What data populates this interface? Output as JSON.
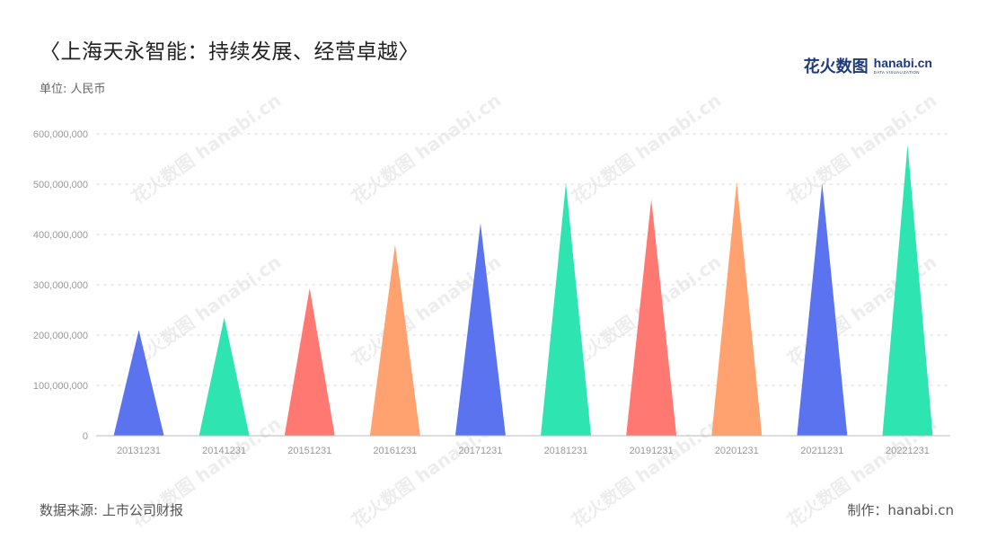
{
  "title": "〈上海天永智能：持续发展、经营卓越〉",
  "unit": "单位: 人民币",
  "logo": {
    "cn": "花火数图",
    "en": "hanabi.cn",
    "en_sub": "DATA VISUALIZATION"
  },
  "footer": {
    "source": "数据来源: 上市公司财报",
    "maker": "制作：hanabi.cn"
  },
  "watermark_text": "花火数图 hanabi.cn",
  "chart_data": {
    "type": "bar",
    "bar_shape": "triangle",
    "categories": [
      "20131231",
      "20141231",
      "20151231",
      "20161231",
      "20171231",
      "20181231",
      "20191231",
      "20201231",
      "20211231",
      "20221231"
    ],
    "values": [
      210000000,
      235000000,
      293000000,
      380000000,
      422000000,
      502000000,
      470000000,
      505000000,
      502000000,
      578000000
    ],
    "colors": [
      "#5b73ef",
      "#2ee5b2",
      "#ff7872",
      "#ffa26f",
      "#5b73ef",
      "#2ee5b2",
      "#ff7872",
      "#ffa26f",
      "#5b73ef",
      "#2ee5b2"
    ],
    "yticks": [
      "0",
      "100,000,000",
      "200,000,000",
      "300,000,000",
      "400,000,000",
      "500,000,000",
      "600,000,000"
    ],
    "ylim": [
      0,
      600000000
    ],
    "grid": true,
    "title": "",
    "xlabel": "",
    "ylabel": ""
  }
}
